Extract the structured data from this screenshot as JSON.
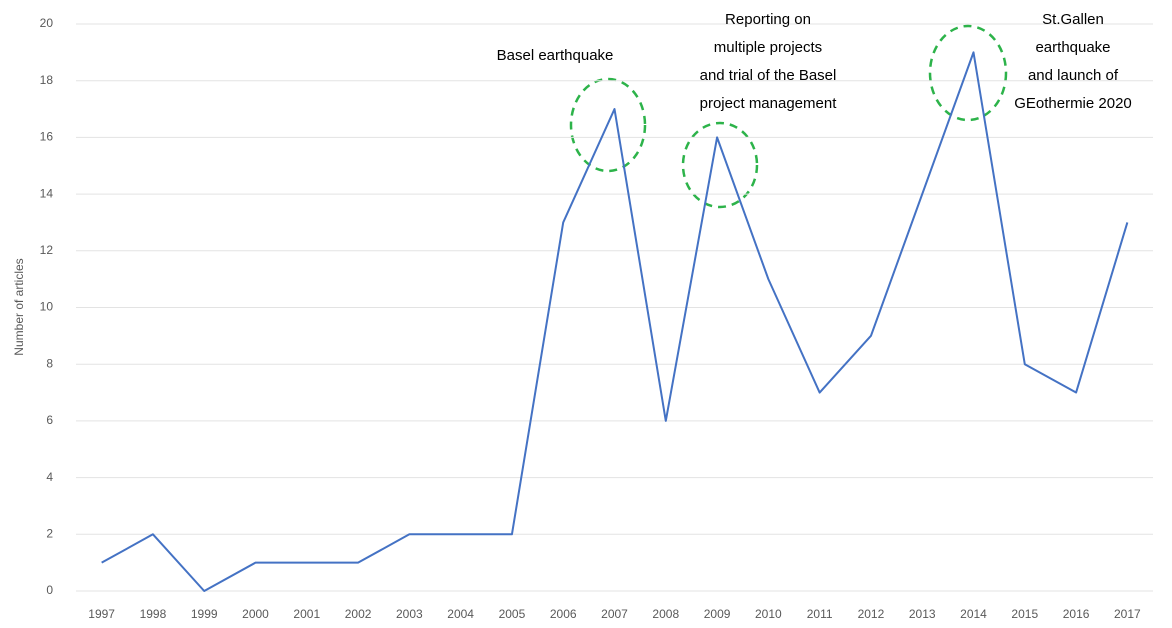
{
  "chart_data": {
    "type": "line",
    "y_label": "Number of articles",
    "categories": [
      "1997",
      "1998",
      "1999",
      "2000",
      "2001",
      "2002",
      "2003",
      "2004",
      "2005",
      "2006",
      "2007",
      "2008",
      "2009",
      "2010",
      "2011",
      "2012",
      "2013",
      "2014",
      "2015",
      "2016",
      "2017"
    ],
    "series": [
      {
        "name": "Number of articles",
        "color": "#4472c4",
        "values": [
          1,
          2,
          0,
          1,
          1,
          1,
          2,
          2,
          2,
          13,
          17,
          6,
          16,
          11,
          7,
          9,
          14,
          19,
          8,
          7,
          13
        ]
      }
    ],
    "ylim": [
      0,
      20
    ],
    "yticks": [
      0,
      2,
      4,
      6,
      8,
      10,
      12,
      14,
      16,
      18,
      20
    ],
    "grid": true,
    "annotations": [
      {
        "lines": [
          "Basel earthquake"
        ]
      },
      {
        "lines": [
          "Reporting on",
          "multiple projects",
          "and trial of the Basel",
          "project management"
        ]
      },
      {
        "lines": [
          "St.Gallen",
          "earthquake",
          "and launch of",
          "GEothermie 2020"
        ]
      }
    ]
  }
}
